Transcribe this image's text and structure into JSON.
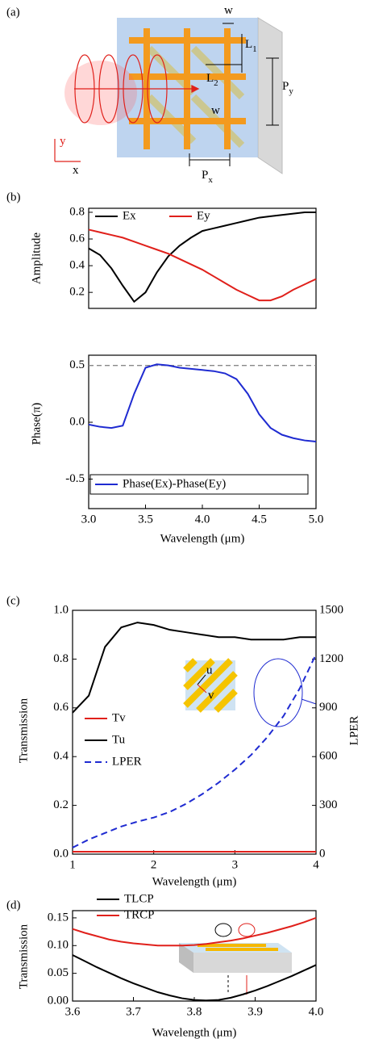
{
  "panel_a": {
    "label": "(a)",
    "labels": [
      {
        "main": "w"
      },
      {
        "main": "L",
        "sub": "1"
      },
      {
        "main": "L",
        "sub": "2"
      },
      {
        "main": "P",
        "sub": "y"
      },
      {
        "main": "w"
      },
      {
        "main": "y"
      },
      {
        "main": "x"
      },
      {
        "main": "P",
        "sub": "x"
      }
    ]
  },
  "chart_data": [
    {
      "type": "line",
      "panel_label": "(b)",
      "ylabel": "Amplitude",
      "x": [
        3.0,
        3.1,
        3.2,
        3.3,
        3.4,
        3.5,
        3.6,
        3.7,
        3.8,
        3.9,
        4.0,
        4.1,
        4.2,
        4.3,
        4.4,
        4.5,
        4.6,
        4.7,
        4.8,
        4.9,
        5.0
      ],
      "series": [
        {
          "name": "Ex",
          "color": "#000000",
          "values": [
            0.53,
            0.48,
            0.38,
            0.25,
            0.13,
            0.2,
            0.35,
            0.47,
            0.55,
            0.61,
            0.66,
            0.68,
            0.7,
            0.72,
            0.74,
            0.76,
            0.77,
            0.78,
            0.79,
            0.8,
            0.8
          ]
        },
        {
          "name": "Ey",
          "color": "#e0201b",
          "values": [
            0.67,
            0.65,
            0.63,
            0.61,
            0.58,
            0.55,
            0.52,
            0.49,
            0.45,
            0.41,
            0.37,
            0.32,
            0.27,
            0.22,
            0.18,
            0.14,
            0.14,
            0.17,
            0.22,
            0.26,
            0.3
          ]
        }
      ],
      "xlim": [
        3.0,
        5.0
      ],
      "ylim": [
        0.08,
        0.83
      ],
      "yticks": [
        0.2,
        0.4,
        0.6,
        0.8
      ]
    },
    {
      "type": "line",
      "ylabel": "Phase(π)",
      "xlabel": "Wavelength (μm)",
      "x": [
        3.0,
        3.1,
        3.2,
        3.3,
        3.4,
        3.5,
        3.6,
        3.7,
        3.8,
        3.9,
        4.0,
        4.1,
        4.2,
        4.3,
        4.4,
        4.5,
        4.6,
        4.7,
        4.8,
        4.9,
        5.0
      ],
      "series": [
        {
          "name": "Phase(Ex)-Phase(Ey)",
          "color": "#1f2bd1",
          "values": [
            -0.02,
            -0.04,
            -0.05,
            -0.03,
            0.25,
            0.48,
            0.51,
            0.5,
            0.48,
            0.47,
            0.46,
            0.45,
            0.43,
            0.38,
            0.25,
            0.07,
            -0.05,
            -0.11,
            -0.14,
            -0.16,
            -0.17
          ]
        }
      ],
      "hline": 0.5,
      "xlim": [
        3.0,
        5.0
      ],
      "xticks": [
        {
          "value": 3,
          "label": "3.0"
        },
        3.5,
        {
          "value": 4,
          "label": "4.0"
        },
        4.5,
        {
          "value": 5,
          "label": "5.0"
        }
      ],
      "ylim": [
        -0.76,
        0.59
      ],
      "yticks": [
        -0.5,
        {
          "value": 0,
          "label": "0.0"
        },
        0.5
      ]
    },
    {
      "type": "line",
      "panel_label": "(c)",
      "ylabel": "Transmission",
      "y2label": "LPER",
      "xlabel": "Wavelength (μm)",
      "inset_labels": [
        "u",
        "v"
      ],
      "x": [
        1.0,
        1.2,
        1.4,
        1.6,
        1.8,
        2.0,
        2.2,
        2.4,
        2.6,
        2.8,
        3.0,
        3.2,
        3.4,
        3.6,
        3.8,
        4.0
      ],
      "series": [
        {
          "name": "Tv",
          "color": "#e0201b",
          "values": [
            0.01,
            0.01,
            0.01,
            0.01,
            0.01,
            0.01,
            0.01,
            0.01,
            0.01,
            0.01,
            0.01,
            0.01,
            0.01,
            0.01,
            0.01,
            0.01
          ]
        },
        {
          "name": "Tu",
          "color": "#000000",
          "values": [
            0.58,
            0.65,
            0.85,
            0.93,
            0.95,
            0.94,
            0.92,
            0.91,
            0.9,
            0.89,
            0.89,
            0.88,
            0.88,
            0.88,
            0.89,
            0.89
          ]
        },
        {
          "name": "LPER",
          "color": "#1f2bd1",
          "dash": true,
          "axis": "y2",
          "values": [
            40,
            90,
            130,
            170,
            200,
            225,
            260,
            310,
            370,
            440,
            520,
            610,
            720,
            850,
            1020,
            1230
          ]
        }
      ],
      "xlim": [
        1,
        4
      ],
      "xticks": [
        1,
        2,
        3,
        4
      ],
      "ylim": [
        0,
        1
      ],
      "yticks": [
        {
          "value": 0,
          "label": "0.0"
        },
        0.2,
        0.4,
        0.6,
        0.8,
        {
          "value": 1,
          "label": "1.0"
        }
      ],
      "y2lim": [
        0,
        1500
      ],
      "y2ticks": [
        0,
        300,
        600,
        900,
        1200,
        1500
      ]
    },
    {
      "type": "line",
      "panel_label": "(d)",
      "ylabel": "Transmission",
      "xlabel": "Wavelength (μm)",
      "x": [
        3.6,
        3.62,
        3.64,
        3.66,
        3.68,
        3.7,
        3.72,
        3.74,
        3.76,
        3.78,
        3.8,
        3.82,
        3.84,
        3.86,
        3.88,
        3.9,
        3.92,
        3.94,
        3.96,
        3.98,
        4.0
      ],
      "series": [
        {
          "name": "TLCP",
          "color": "#000000",
          "values": [
            0.083,
            0.072,
            0.061,
            0.051,
            0.041,
            0.032,
            0.024,
            0.016,
            0.01,
            0.005,
            0.002,
            0.001,
            0.002,
            0.006,
            0.012,
            0.019,
            0.027,
            0.036,
            0.045,
            0.055,
            0.065
          ]
        },
        {
          "name": "TRCP",
          "color": "#e0201b",
          "values": [
            0.13,
            0.123,
            0.117,
            0.111,
            0.107,
            0.104,
            0.102,
            0.1,
            0.1,
            0.1,
            0.101,
            0.103,
            0.106,
            0.109,
            0.113,
            0.118,
            0.123,
            0.129,
            0.135,
            0.142,
            0.15
          ]
        }
      ],
      "xlim": [
        3.6,
        4.0
      ],
      "xticks": [
        3.6,
        3.7,
        3.8,
        3.9,
        {
          "value": 4,
          "label": "4.0"
        }
      ],
      "ylim": [
        0,
        0.163
      ],
      "yticks": [
        {
          "value": 0,
          "label": "0.00"
        },
        {
          "value": 0.05,
          "label": "0.05"
        },
        {
          "value": 0.1,
          "label": "0.10"
        },
        {
          "value": 0.15,
          "label": "0.15"
        }
      ]
    }
  ]
}
